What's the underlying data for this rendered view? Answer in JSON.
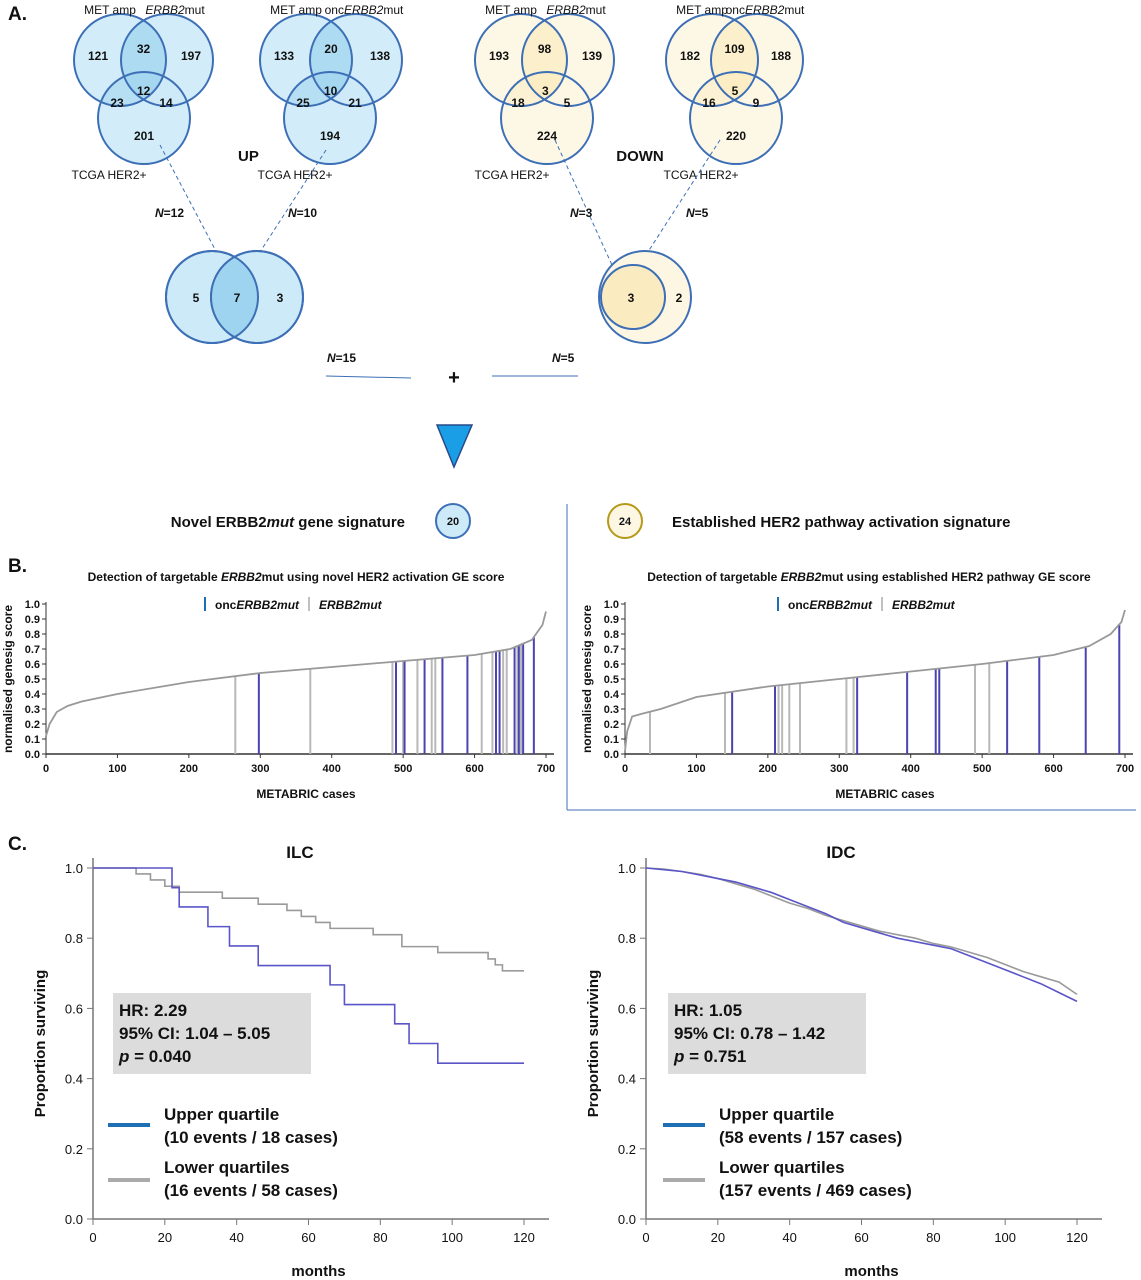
{
  "panel_labels": {
    "a": "A.",
    "b": "B.",
    "c": "C."
  },
  "panel_a": {
    "up_label": "UP",
    "down_label": "DOWN",
    "venns": [
      {
        "top_left_label": "MET amp",
        "top_right_prefix": "",
        "top_right_italic": "ERBB2",
        "top_right_suffix": "mut",
        "bottom_label": "TCGA HER2+",
        "regions": {
          "a_only": "121",
          "ab": "32",
          "b_only": "197",
          "abc": "12",
          "ac": "23",
          "bc": "14",
          "c_only": "201"
        }
      },
      {
        "top_left_label": "MET amp",
        "top_right_prefix": "onc",
        "top_right_italic": "ERBB2",
        "top_right_suffix": "mut",
        "bottom_label": "TCGA HER2+",
        "regions": {
          "a_only": "133",
          "ab": "20",
          "b_only": "138",
          "abc": "10",
          "ac": "25",
          "bc": "21",
          "c_only": "194"
        }
      },
      {
        "top_left_label": "MET amp",
        "top_right_prefix": "",
        "top_right_italic": "ERBB2",
        "top_right_suffix": "mut",
        "bottom_label": "TCGA HER2+",
        "regions": {
          "a_only": "193",
          "ab": "98",
          "b_only": "139",
          "abc": "3",
          "ac": "18",
          "bc": "5",
          "c_only": "224"
        }
      },
      {
        "top_left_label": "MET amp",
        "top_right_prefix": "onc",
        "top_right_italic": "ERBB2",
        "top_right_suffix": "mut",
        "bottom_label": "TCGA HER2+",
        "regions": {
          "a_only": "182",
          "ab": "109",
          "b_only": "188",
          "abc": "5",
          "ac": "16",
          "bc": "9",
          "c_only": "220"
        }
      }
    ],
    "n_labels": [
      {
        "italic": "N",
        "rest": "=12"
      },
      {
        "italic": "N",
        "rest": "=10"
      },
      {
        "italic": "N",
        "rest": "=3"
      },
      {
        "italic": "N",
        "rest": "=5"
      }
    ],
    "combined_up": {
      "left_only": "5",
      "overlap": "7",
      "right_only": "3"
    },
    "combined_down": {
      "inner": "3",
      "outer": "2"
    },
    "totals": [
      {
        "italic": "N",
        "rest": "=15"
      },
      {
        "italic": "N",
        "rest": "=5"
      }
    ],
    "plus": "+",
    "signature_left": {
      "prefix": "Novel ERBB2",
      "italic": "mut",
      "suffix": " gene signature",
      "count": "20"
    },
    "signature_right": {
      "text": "Established HER2 pathway activation signature",
      "count": "24"
    }
  },
  "colors": {
    "blue_fill": "#cdeaf8",
    "blue_overlap": "#9fd4f0",
    "blue_stroke": "#3d6fb6",
    "yellow_fill": "#fdf6e3",
    "yellow_stroke": "#b59a1a",
    "triangle": "#1a9ee6",
    "onc_line": "#4a43b0",
    "erbb2_line": "#b8b8b8",
    "curve_grey": "#999999",
    "km_upper": "#5a55c8",
    "km_lower": "#9a9a9a",
    "legend_upper": "#1f6fb4",
    "legend_lower": "#aaaaaa",
    "stats_box": "#dcdcdc"
  },
  "chart_data": [
    {
      "type": "line",
      "title": {
        "prefix": "Detection of targetable ",
        "italic": "ERBB2",
        "suffix": "mut using novel HER2 activation GE score"
      },
      "xlabel": "METABRIC cases",
      "ylabel": "normalised genesig score",
      "xlim": [
        0,
        700
      ],
      "ylim": [
        0,
        1.0
      ],
      "xticks": [
        "0",
        "100",
        "200",
        "300",
        "400",
        "500",
        "600",
        "700"
      ],
      "yticks": [
        "0.0",
        "0.1",
        "0.2",
        "0.3",
        "0.4",
        "0.5",
        "0.6",
        "0.7",
        "0.8",
        "0.9",
        "1.0"
      ],
      "legend": [
        {
          "prefix": "onc",
          "italic": "ERBB2mut",
          "suffix": ""
        },
        {
          "prefix": "",
          "italic": "ERBB2mut",
          "suffix": ""
        }
      ],
      "curve": {
        "x": [
          0,
          5,
          15,
          30,
          50,
          100,
          200,
          300,
          400,
          500,
          600,
          650,
          680,
          695,
          700
        ],
        "y": [
          0.12,
          0.2,
          0.28,
          0.32,
          0.35,
          0.4,
          0.48,
          0.54,
          0.58,
          0.62,
          0.66,
          0.7,
          0.76,
          0.86,
          0.95
        ]
      },
      "onc_cases": [
        298,
        490,
        502,
        530,
        555,
        590,
        630,
        635,
        656,
        662,
        668,
        683
      ],
      "erbb2_cases": [
        265,
        370,
        485,
        500,
        520,
        540,
        545,
        610,
        625,
        640,
        645,
        660,
        665
      ]
    },
    {
      "type": "line",
      "title": {
        "prefix": "Detection of targetable ",
        "italic": "ERBB2",
        "suffix": "mut using established HER2 pathway GE score"
      },
      "xlabel": "METABRIC cases",
      "ylabel": "normalised genesig score",
      "xlim": [
        0,
        700
      ],
      "ylim": [
        0,
        1.0
      ],
      "xticks": [
        "0",
        "100",
        "200",
        "300",
        "400",
        "500",
        "600",
        "700"
      ],
      "yticks": [
        "0.0",
        "0.1",
        "0.2",
        "0.3",
        "0.4",
        "0.5",
        "0.6",
        "0.7",
        "0.8",
        "0.9",
        "1.0"
      ],
      "legend": [
        {
          "prefix": "onc",
          "italic": "ERBB2mut",
          "suffix": ""
        },
        {
          "prefix": "",
          "italic": "ERBB2mut",
          "suffix": ""
        }
      ],
      "curve": {
        "x": [
          0,
          3,
          10,
          25,
          50,
          100,
          200,
          300,
          400,
          500,
          600,
          650,
          680,
          695,
          700
        ],
        "y": [
          0.02,
          0.15,
          0.25,
          0.27,
          0.3,
          0.38,
          0.45,
          0.5,
          0.55,
          0.6,
          0.66,
          0.72,
          0.8,
          0.88,
          0.96
        ]
      },
      "onc_cases": [
        150,
        210,
        325,
        395,
        435,
        440,
        535,
        580,
        645,
        692
      ],
      "erbb2_cases": [
        35,
        140,
        215,
        220,
        230,
        245,
        310,
        320,
        490,
        510
      ]
    },
    {
      "type": "line",
      "title": "ILC",
      "xlabel": "months",
      "ylabel": "Proportion surviving",
      "xlim": [
        0,
        120
      ],
      "ylim": [
        0,
        1.0
      ],
      "xticks": [
        "0",
        "20",
        "40",
        "60",
        "80",
        "100",
        "120"
      ],
      "yticks": [
        "0.0",
        "0.2",
        "0.4",
        "0.6",
        "0.8",
        "1.0"
      ],
      "series": [
        {
          "name": "Upper quartile",
          "legend_sub": "(10 events / 18 cases)",
          "x": [
            0,
            22,
            22,
            24,
            24,
            32,
            32,
            38,
            38,
            46,
            46,
            66,
            66,
            70,
            70,
            84,
            84,
            88,
            88,
            96,
            96,
            120
          ],
          "y": [
            1.0,
            1.0,
            0.944,
            0.944,
            0.889,
            0.889,
            0.833,
            0.833,
            0.778,
            0.778,
            0.722,
            0.722,
            0.667,
            0.667,
            0.611,
            0.611,
            0.556,
            0.556,
            0.5,
            0.5,
            0.444,
            0.444
          ]
        },
        {
          "name": "Lower quartiles",
          "legend_sub": "(16 events / 58 cases)",
          "x": [
            0,
            12,
            12,
            16,
            16,
            20,
            20,
            24,
            24,
            36,
            36,
            46,
            46,
            54,
            54,
            58,
            58,
            62,
            62,
            66,
            66,
            78,
            78,
            86,
            86,
            96,
            96,
            110,
            110,
            112,
            112,
            114,
            114,
            120
          ],
          "y": [
            1.0,
            1.0,
            0.983,
            0.983,
            0.966,
            0.966,
            0.948,
            0.948,
            0.931,
            0.931,
            0.914,
            0.914,
            0.897,
            0.897,
            0.879,
            0.879,
            0.862,
            0.862,
            0.845,
            0.845,
            0.828,
            0.828,
            0.81,
            0.81,
            0.776,
            0.776,
            0.759,
            0.759,
            0.741,
            0.741,
            0.724,
            0.724,
            0.707,
            0.707
          ]
        }
      ],
      "stats": [
        "HR: 2.29",
        "95% CI: 1.04 – 5.05",
        {
          "italic": "p",
          "rest": " = 0.040"
        }
      ]
    },
    {
      "type": "line",
      "title": "IDC",
      "xlabel": "months",
      "ylabel": "Proportion surviving",
      "xlim": [
        0,
        120
      ],
      "ylim": [
        0,
        1.0
      ],
      "xticks": [
        "0",
        "20",
        "40",
        "60",
        "80",
        "100",
        "120"
      ],
      "yticks": [
        "0.0",
        "0.2",
        "0.4",
        "0.6",
        "0.8",
        "1.0"
      ],
      "series": [
        {
          "name": "Upper quartile",
          "legend_sub": "(58 events / 157 cases)",
          "x": [
            0,
            5,
            10,
            15,
            20,
            25,
            30,
            35,
            40,
            45,
            50,
            55,
            60,
            65,
            70,
            75,
            80,
            85,
            90,
            95,
            100,
            105,
            110,
            115,
            120
          ],
          "y": [
            1.0,
            0.995,
            0.99,
            0.98,
            0.97,
            0.96,
            0.945,
            0.93,
            0.91,
            0.89,
            0.87,
            0.845,
            0.83,
            0.815,
            0.8,
            0.79,
            0.78,
            0.77,
            0.75,
            0.73,
            0.71,
            0.69,
            0.67,
            0.645,
            0.62
          ]
        },
        {
          "name": "Lower quartiles",
          "legend_sub": "(157 events / 469 cases)",
          "x": [
            0,
            5,
            10,
            15,
            20,
            25,
            30,
            35,
            40,
            45,
            50,
            55,
            60,
            65,
            70,
            75,
            80,
            85,
            90,
            95,
            100,
            105,
            110,
            115,
            120
          ],
          "y": [
            1.0,
            0.997,
            0.99,
            0.982,
            0.97,
            0.955,
            0.94,
            0.92,
            0.9,
            0.885,
            0.865,
            0.85,
            0.835,
            0.82,
            0.81,
            0.8,
            0.785,
            0.775,
            0.76,
            0.745,
            0.725,
            0.705,
            0.69,
            0.675,
            0.64
          ]
        }
      ],
      "stats": [
        "HR: 1.05",
        "95% CI: 0.78 – 1.42",
        {
          "italic": "p",
          "rest": " = 0.751"
        }
      ]
    }
  ]
}
